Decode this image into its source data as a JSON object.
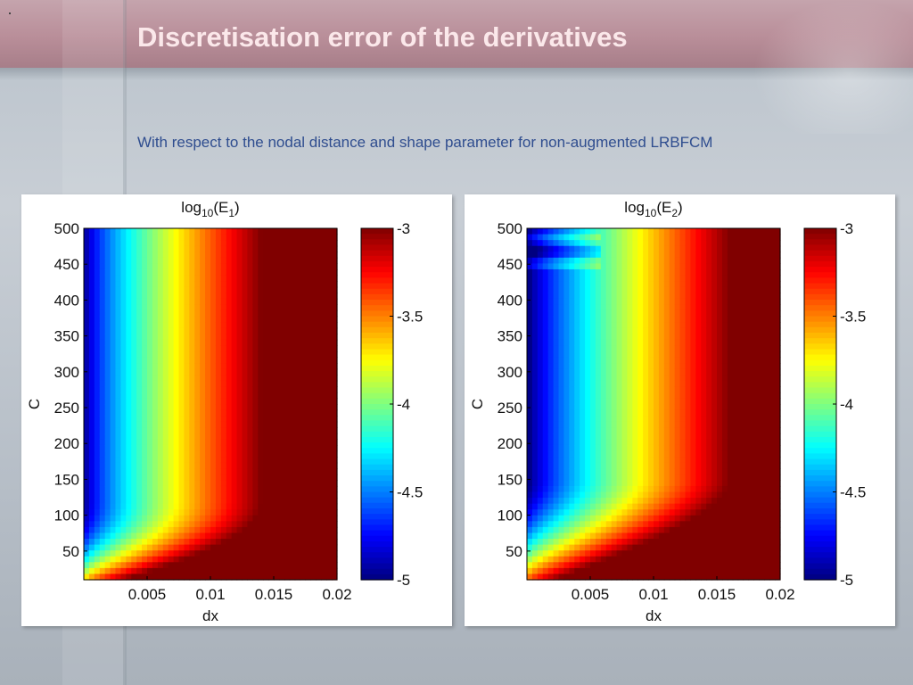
{
  "slide": {
    "title": "Discretisation error of the derivatives",
    "subtitle": "With respect to the nodal distance and shape parameter for non-augmented LRBFCM"
  },
  "chart_data": [
    {
      "type": "heatmap",
      "title": "log10(E1)",
      "title_parts": {
        "base": "log",
        "sub": "10",
        "open": "(E",
        "idx": "1",
        "close": ")"
      },
      "xlabel": "dx",
      "ylabel": "C",
      "xlim": [
        0.0,
        0.02
      ],
      "ylim": [
        10,
        500
      ],
      "xticks": [
        0.005,
        0.01,
        0.015,
        0.02
      ],
      "xtick_labels": [
        "0.005",
        "0.01",
        "0.015",
        "0.02"
      ],
      "yticks": [
        50,
        100,
        150,
        200,
        250,
        300,
        350,
        400,
        450,
        500
      ],
      "ytick_labels": [
        "50",
        "100",
        "150",
        "200",
        "250",
        "300",
        "350",
        "400",
        "450",
        "500"
      ],
      "colorbar": {
        "range": [
          -5,
          -3
        ],
        "ticks": [
          -3,
          -3.5,
          -4,
          -4.5,
          -5
        ],
        "tick_labels": [
          "-3",
          "-3.5",
          "-4",
          "-4.5",
          "-5"
        ]
      },
      "colormap": "jet",
      "description_values": {
        "x": [
          0.001,
          0.003,
          0.005,
          0.007,
          0.009,
          0.011,
          0.013,
          0.015,
          0.017,
          0.019
        ],
        "log10_E_at_C_300": [
          -4.9,
          -4.35,
          -4.0,
          -3.7,
          -3.45,
          -3.25,
          -3.1,
          -3.0,
          -3.0,
          -3.0
        ]
      }
    },
    {
      "type": "heatmap",
      "title": "log10(E2)",
      "title_parts": {
        "base": "log",
        "sub": "10",
        "open": "(E",
        "idx": "2",
        "close": ")"
      },
      "xlabel": "dx",
      "ylabel": "C",
      "xlim": [
        0.0,
        0.02
      ],
      "ylim": [
        10,
        500
      ],
      "xticks": [
        0.005,
        0.01,
        0.015,
        0.02
      ],
      "xtick_labels": [
        "0.005",
        "0.01",
        "0.015",
        "0.02"
      ],
      "yticks": [
        50,
        100,
        150,
        200,
        250,
        300,
        350,
        400,
        450,
        500
      ],
      "ytick_labels": [
        "50",
        "100",
        "150",
        "200",
        "250",
        "300",
        "350",
        "400",
        "450",
        "500"
      ],
      "colorbar": {
        "range": [
          -5,
          -3
        ],
        "ticks": [
          -3,
          -3.5,
          -4,
          -4.5,
          -5
        ],
        "tick_labels": [
          "-3",
          "-3.5",
          "-4",
          "-4.5",
          "-5"
        ]
      },
      "colormap": "jet",
      "description_values": {
        "x": [
          0.001,
          0.003,
          0.005,
          0.007,
          0.009,
          0.011,
          0.013,
          0.015,
          0.017,
          0.019
        ],
        "log10_E_at_C_300": [
          -4.95,
          -4.5,
          -4.1,
          -3.75,
          -3.5,
          -3.3,
          -3.15,
          -3.05,
          -3.0,
          -3.0
        ]
      }
    }
  ]
}
